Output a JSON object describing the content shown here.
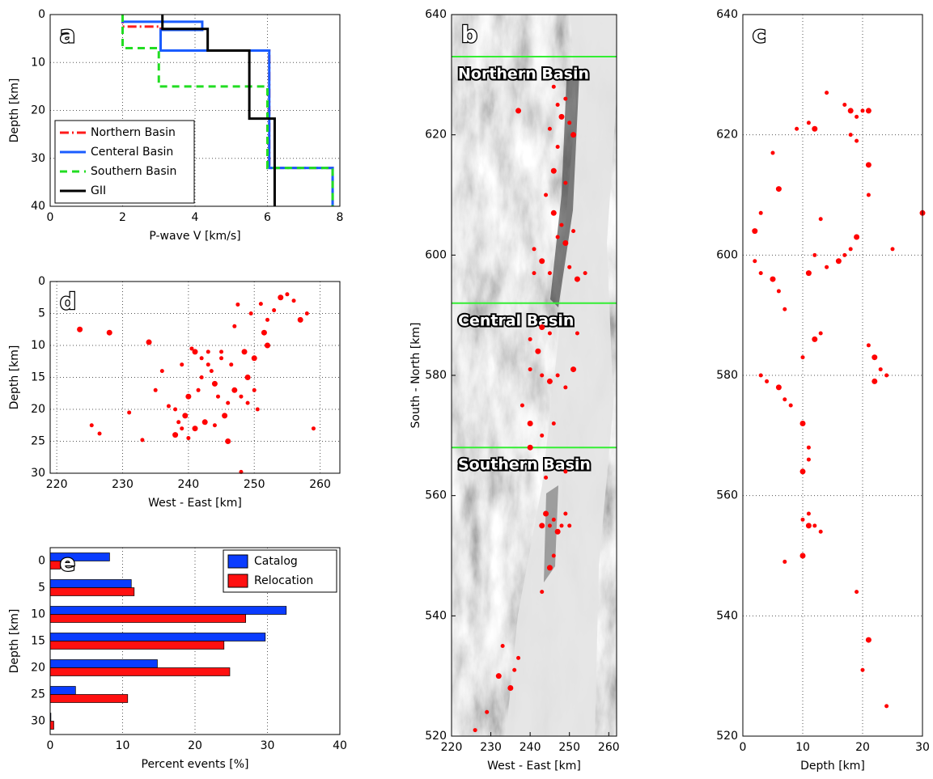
{
  "chart_data": [
    {
      "type": "line",
      "panel_label": "a",
      "x_label": "P-wave V [km/s]",
      "y_label": "Depth [km]",
      "xlim": [
        0,
        8
      ],
      "xticks": [
        0,
        2,
        4,
        6,
        8
      ],
      "ylim": [
        0,
        40
      ],
      "yticks": [
        0,
        10,
        20,
        30,
        40
      ],
      "y_inverted": true,
      "grid": true,
      "legend": "lower left",
      "series": [
        {
          "name": "Northern Basin",
          "color": "#ff1a1a",
          "line_style": "dashdot",
          "x": [
            2,
            2,
            3.05,
            3.05,
            6.05,
            6.05,
            7.8,
            7.8
          ],
          "values": [
            0,
            2.5,
            2.5,
            7.5,
            7.5,
            32,
            32,
            40
          ]
        },
        {
          "name": "Centeral Basin",
          "color": "#1a5cff",
          "line_style": "solid",
          "x": [
            2,
            2,
            4.2,
            4.2,
            3.05,
            3.05,
            6.05,
            6.05,
            7.8,
            7.8
          ],
          "values": [
            0,
            1.5,
            1.5,
            3.2,
            3.2,
            7.5,
            7.5,
            32,
            32,
            40
          ]
        },
        {
          "name": "Southern Basin",
          "color": "#22dd22",
          "line_style": "dashed",
          "x": [
            2,
            2,
            3,
            3,
            6,
            6,
            7.8,
            7.8
          ],
          "values": [
            0,
            7,
            7,
            15,
            15,
            32,
            32,
            40
          ]
        },
        {
          "name": "GII",
          "color": "#000000",
          "line_style": "solid",
          "x": [
            3.1,
            3.1,
            4.35,
            4.35,
            5.5,
            5.5,
            6.2,
            6.2
          ],
          "values": [
            0,
            3,
            3,
            7.5,
            7.5,
            21.7,
            21.7,
            40
          ]
        }
      ]
    },
    {
      "type": "scatter",
      "panel_label": "b",
      "x_label": "West - East [km]",
      "y_label": "South - North [km]",
      "xlim": [
        220,
        262
      ],
      "xticks": [
        220,
        230,
        240,
        250,
        260
      ],
      "ylim": [
        520,
        640
      ],
      "yticks": [
        520,
        540,
        560,
        580,
        600,
        620,
        640
      ],
      "grid": false,
      "color": "#ff0000",
      "basin_lines": [
        {
          "value": 633,
          "label": "Northern Basin"
        },
        {
          "value": 592,
          "label": "Central Basin"
        },
        {
          "value": 568,
          "label": "Southern Basin"
        }
      ],
      "basin_line_color": "#33ee33",
      "x": [
        237,
        246,
        247,
        248,
        249,
        250,
        251,
        245,
        247,
        246,
        249,
        244,
        246,
        248,
        247,
        249,
        251,
        241,
        243,
        245,
        250,
        252,
        254,
        241,
        243,
        245,
        240,
        242,
        240,
        243,
        245,
        247,
        249,
        251,
        252,
        238,
        240,
        243,
        246,
        240,
        244,
        249,
        244,
        245,
        246,
        247,
        248,
        249,
        243,
        250,
        246,
        245,
        243,
        233,
        232,
        236,
        237,
        235,
        226,
        229
      ],
      "values": [
        624,
        628,
        625,
        623,
        626,
        622,
        620,
        621,
        618,
        614,
        612,
        610,
        607,
        605,
        603,
        602,
        604,
        601,
        599,
        597,
        598,
        596,
        597,
        597,
        588,
        587,
        586,
        584,
        581,
        580,
        579,
        580,
        578,
        581,
        587,
        575,
        572,
        570,
        572,
        568,
        563,
        564,
        557,
        555,
        556,
        554,
        555,
        557,
        555,
        555,
        550,
        548,
        544,
        535,
        530,
        531,
        533,
        528,
        521,
        524
      ]
    },
    {
      "type": "scatter",
      "panel_label": "c",
      "x_label": "Depth [km]",
      "xlim": [
        0,
        30
      ],
      "xticks": [
        0,
        10,
        20,
        30
      ],
      "ylim": [
        520,
        640
      ],
      "yticks": [
        520,
        540,
        560,
        580,
        600,
        620,
        640
      ],
      "grid": true,
      "color": "#ff0000",
      "x": [
        2,
        3,
        5,
        6,
        9,
        11,
        12,
        14,
        17,
        18,
        19,
        20,
        21,
        18,
        19,
        21,
        21,
        13,
        19,
        18,
        17,
        16,
        12,
        14,
        11,
        2,
        3,
        5,
        6,
        25,
        30,
        7,
        13,
        12,
        10,
        21,
        22,
        23,
        24,
        22,
        3,
        4,
        6,
        7,
        8,
        10,
        11,
        11,
        10,
        11,
        10,
        11,
        12,
        13,
        10,
        7,
        19,
        21,
        20,
        24
      ],
      "values": [
        604,
        607,
        617,
        611,
        621,
        622,
        621,
        627,
        625,
        624,
        623,
        624,
        624,
        620,
        619,
        615,
        610,
        606,
        603,
        601,
        600,
        599,
        600,
        598,
        597,
        599,
        597,
        596,
        594,
        601,
        607,
        591,
        587,
        586,
        583,
        585,
        583,
        581,
        580,
        579,
        580,
        579,
        578,
        576,
        575,
        572,
        568,
        566,
        564,
        557,
        556,
        555,
        555,
        554,
        550,
        549,
        544,
        536,
        531,
        525
      ]
    },
    {
      "type": "scatter",
      "panel_label": "d",
      "x_label": "West - East [km]",
      "y_label": "Depth [km]",
      "xlim": [
        219,
        263
      ],
      "xticks": [
        220,
        230,
        240,
        250,
        260
      ],
      "ylim": [
        0,
        30
      ],
      "yticks": [
        0,
        5,
        10,
        15,
        20,
        25,
        30
      ],
      "y_inverted": true,
      "grid": true,
      "color": "#ff0000",
      "x": [
        223.5,
        225.3,
        226.5,
        228,
        231,
        233,
        234,
        236,
        237,
        238,
        238.5,
        239,
        239.5,
        240,
        240.5,
        241,
        241.5,
        242,
        242.5,
        243,
        243.5,
        244,
        244.5,
        245,
        245.5,
        246,
        246.5,
        247,
        247.5,
        248,
        248.5,
        249,
        249.5,
        250,
        250.5,
        251,
        251.5,
        252,
        253,
        254,
        255,
        256,
        257,
        258,
        248,
        246,
        244,
        242,
        240,
        238,
        250,
        252,
        247,
        243,
        241,
        239,
        245,
        249,
        235,
        259
      ],
      "values": [
        7.5,
        22.5,
        23.8,
        8,
        20.5,
        24.8,
        9.5,
        14,
        19.5,
        24,
        22,
        13,
        21,
        24.5,
        10.5,
        23,
        17,
        12,
        22,
        11,
        14,
        16,
        18,
        11,
        21,
        19,
        13,
        17,
        3.6,
        18,
        11,
        19,
        5,
        12,
        20,
        3.5,
        8,
        6,
        4.5,
        2.5,
        2,
        3,
        6,
        5,
        29.8,
        25,
        22.5,
        15,
        18,
        20,
        17,
        10,
        7,
        13,
        11,
        23,
        12,
        15,
        17,
        23
      ]
    },
    {
      "type": "bar",
      "orientation": "horizontal",
      "panel_label": "e",
      "x_label": "Percent events [%]",
      "y_label": "Depth [km]",
      "xlim": [
        0,
        40
      ],
      "xticks": [
        0,
        10,
        20,
        30,
        40
      ],
      "grid": true,
      "legend": "upper right",
      "categories": [
        "0",
        "5",
        "10",
        "15",
        "20",
        "25",
        "30"
      ],
      "series": [
        {
          "name": "Catalog",
          "color": "#0a3cff",
          "values": [
            8.2,
            11.2,
            32.6,
            29.7,
            14.8,
            3.5,
            0.1
          ]
        },
        {
          "name": "Relocation",
          "color": "#ff1010",
          "values": [
            1.4,
            11.6,
            27,
            24,
            24.8,
            10.7,
            0.5
          ]
        }
      ]
    }
  ]
}
